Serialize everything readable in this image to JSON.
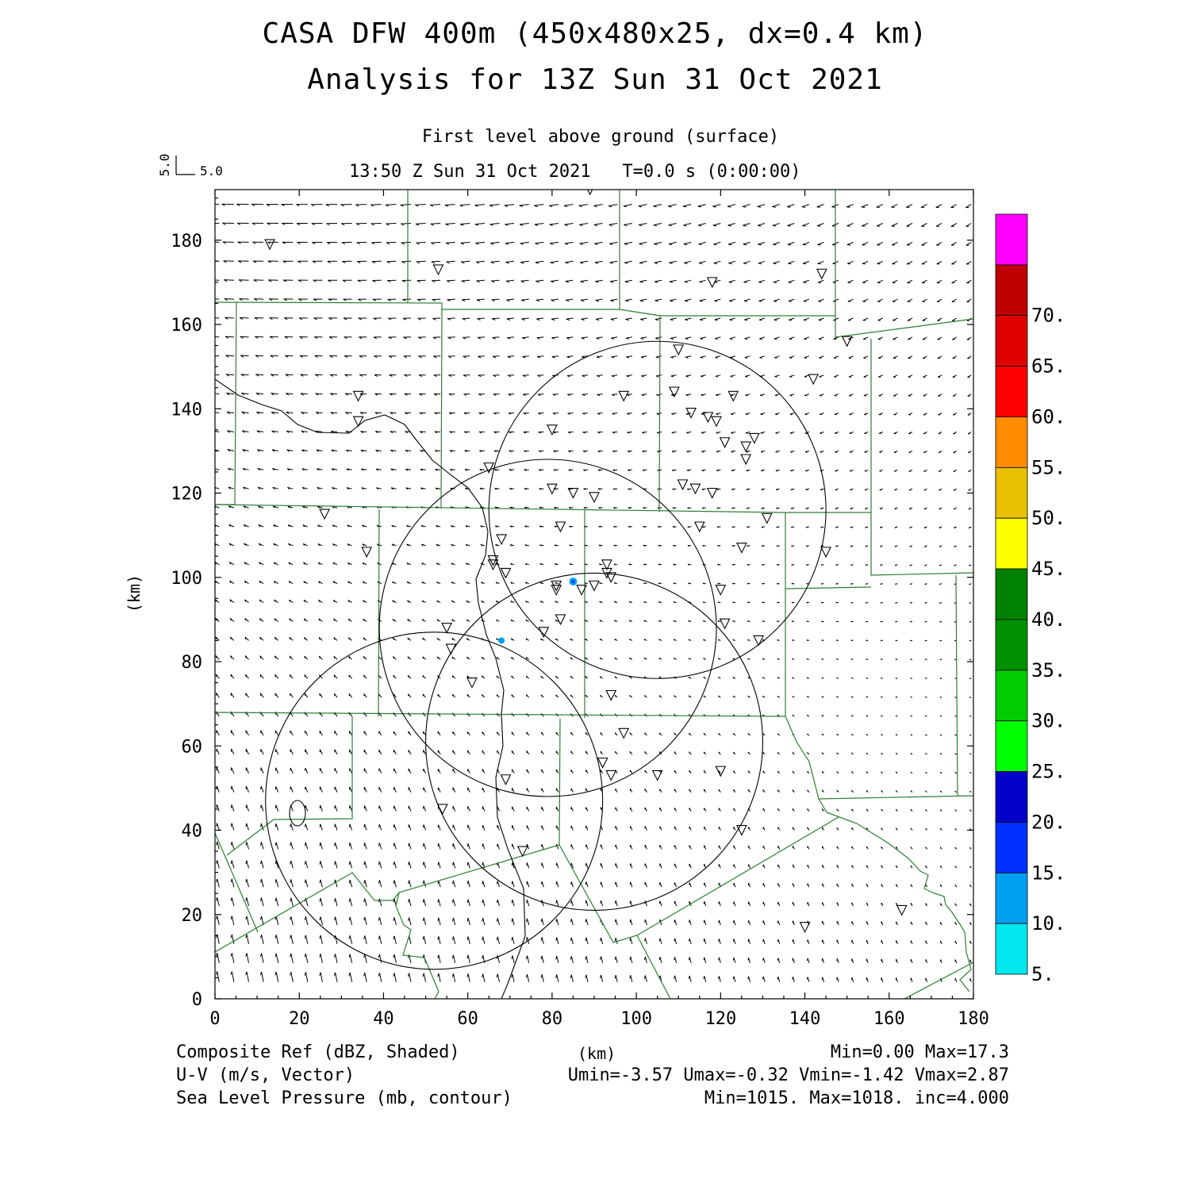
{
  "title": {
    "line1": "CASA DFW 400m (450x480x25, dx=0.4 km)",
    "line2": "Analysis for 13Z Sun 31 Oct 2021",
    "level": "First level above ground (surface)",
    "time": "13:50 Z Sun 31 Oct 2021   T=0.0 s (0:00:00)"
  },
  "vector_key": {
    "u_label": "5.0",
    "v_label": "5.0"
  },
  "axes": {
    "x_ticks": [
      "0",
      "20",
      "40",
      "60",
      "80",
      "100",
      "120",
      "140",
      "160",
      "180"
    ],
    "y_ticks": [
      "0",
      "20",
      "40",
      "60",
      "80",
      "100",
      "120",
      "140",
      "160",
      "180"
    ],
    "xlim": [
      0,
      180
    ],
    "ylim": [
      0,
      192
    ],
    "xlabel": "(km)",
    "ylabel": "(km)"
  },
  "colorbar": {
    "labels": [
      "5.",
      "10.",
      "15.",
      "20.",
      "25.",
      "30.",
      "35.",
      "40.",
      "45.",
      "50.",
      "55.",
      "60.",
      "65.",
      "70."
    ],
    "colors": [
      "#00e8ee",
      "#00a0f0",
      "#0030ff",
      "#0000c8",
      "#00ff00",
      "#00cc00",
      "#009000",
      "#008000",
      "#ffff00",
      "#e8c000",
      "#ff8c00",
      "#ff0000",
      "#e00000",
      "#c00000",
      "#ff00ff"
    ]
  },
  "bottom": {
    "left1": "Composite Ref (dBZ, Shaded)",
    "left2": "U-V (m/s, Vector)",
    "left3": "Sea Level Pressure (mb, contour)",
    "center": "(km)",
    "right1": "Min=0.00 Max=17.3",
    "right2": "Umin=-3.57 Umax=-0.32 Vmin=-1.42 Vmax=2.87",
    "right3": "Min=1015. Max=1018. inc=4.000"
  },
  "colors": {
    "county_lines": "#2e7d32",
    "contours": "#000000",
    "echo": "#00a0f0"
  },
  "radar_rings_km": [
    {
      "center": [
        52,
        47
      ],
      "radius": 40
    },
    {
      "center": [
        79,
        88
      ],
      "radius": 40
    },
    {
      "center": [
        90,
        61
      ],
      "radius": 40
    },
    {
      "center": [
        105,
        116
      ],
      "radius": 40
    }
  ],
  "stations_km": [
    [
      13,
      179
    ],
    [
      53,
      173
    ],
    [
      89,
      192
    ],
    [
      118,
      170
    ],
    [
      144,
      172
    ],
    [
      150,
      156
    ],
    [
      110,
      154
    ],
    [
      142,
      147
    ],
    [
      109,
      144
    ],
    [
      97,
      143
    ],
    [
      123,
      143
    ],
    [
      34,
      143
    ],
    [
      34,
      137
    ],
    [
      113,
      139
    ],
    [
      117,
      138
    ],
    [
      119,
      137
    ],
    [
      80,
      135
    ],
    [
      128,
      133
    ],
    [
      121,
      132
    ],
    [
      126,
      131
    ],
    [
      126,
      128
    ],
    [
      65,
      126
    ],
    [
      111,
      122
    ],
    [
      114,
      121
    ],
    [
      118,
      120
    ],
    [
      80,
      121
    ],
    [
      85,
      120
    ],
    [
      90,
      119
    ],
    [
      26,
      115
    ],
    [
      131,
      114
    ],
    [
      82,
      112
    ],
    [
      115,
      112
    ],
    [
      68,
      109
    ],
    [
      125,
      107
    ],
    [
      36,
      106
    ],
    [
      145,
      106
    ],
    [
      66,
      104
    ],
    [
      66,
      103
    ],
    [
      69,
      101
    ],
    [
      93,
      103
    ],
    [
      93,
      101
    ],
    [
      94,
      100
    ],
    [
      90,
      98
    ],
    [
      81,
      98
    ],
    [
      81,
      97
    ],
    [
      87,
      97
    ],
    [
      120,
      97
    ],
    [
      82,
      90
    ],
    [
      121,
      89
    ],
    [
      78,
      87
    ],
    [
      55,
      88
    ],
    [
      56,
      83
    ],
    [
      129,
      85
    ],
    [
      61,
      75
    ],
    [
      94,
      72
    ],
    [
      97,
      63
    ],
    [
      92,
      56
    ],
    [
      94,
      53
    ],
    [
      120,
      54
    ],
    [
      105,
      53
    ],
    [
      69,
      52
    ],
    [
      54,
      45
    ],
    [
      125,
      40
    ],
    [
      73,
      35
    ],
    [
      163,
      21
    ],
    [
      140,
      17
    ]
  ],
  "echo_points_km": [
    [
      85,
      99
    ],
    [
      68,
      85
    ]
  ],
  "pressure_contour_label": "0"
}
